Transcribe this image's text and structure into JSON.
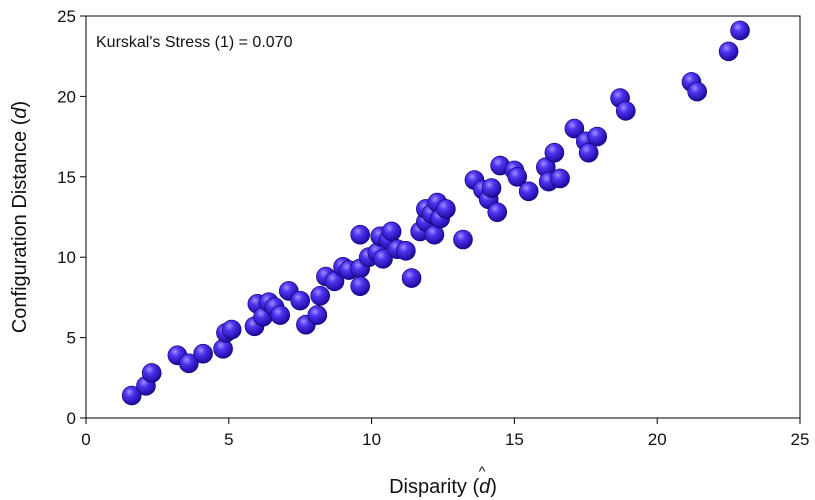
{
  "chart_data": {
    "type": "scatter",
    "annotation": "Kurskal's Stress (1) = 0.070",
    "xlabel_main": "Disparity (",
    "xlabel_symbol": "d",
    "xlabel_close": ")",
    "ylabel_main": "Configuration Distance (",
    "ylabel_symbol": "d",
    "ylabel_close": ")",
    "xlim": [
      0,
      25
    ],
    "ylim": [
      0,
      25
    ],
    "x_ticks": [
      "0",
      "5",
      "10",
      "15",
      "20",
      "25"
    ],
    "y_ticks": [
      "0",
      "5",
      "10",
      "15",
      "20",
      "25"
    ],
    "grid": false,
    "marker_color": "#3a1fd8",
    "points": [
      {
        "x": 1.6,
        "y": 1.4
      },
      {
        "x": 2.1,
        "y": 2.0
      },
      {
        "x": 2.3,
        "y": 2.8
      },
      {
        "x": 3.2,
        "y": 3.9
      },
      {
        "x": 3.6,
        "y": 3.4
      },
      {
        "x": 4.1,
        "y": 4.0
      },
      {
        "x": 4.8,
        "y": 4.3
      },
      {
        "x": 4.9,
        "y": 5.3
      },
      {
        "x": 5.1,
        "y": 5.5
      },
      {
        "x": 5.9,
        "y": 5.7
      },
      {
        "x": 6.0,
        "y": 7.1
      },
      {
        "x": 6.2,
        "y": 6.3
      },
      {
        "x": 6.4,
        "y": 7.2
      },
      {
        "x": 6.6,
        "y": 6.9
      },
      {
        "x": 6.8,
        "y": 6.4
      },
      {
        "x": 7.1,
        "y": 7.9
      },
      {
        "x": 7.5,
        "y": 7.3
      },
      {
        "x": 7.7,
        "y": 5.8
      },
      {
        "x": 8.1,
        "y": 6.4
      },
      {
        "x": 8.2,
        "y": 7.6
      },
      {
        "x": 8.4,
        "y": 8.8
      },
      {
        "x": 8.7,
        "y": 8.5
      },
      {
        "x": 9.0,
        "y": 9.4
      },
      {
        "x": 9.2,
        "y": 9.2
      },
      {
        "x": 9.6,
        "y": 9.3
      },
      {
        "x": 9.6,
        "y": 8.2
      },
      {
        "x": 9.6,
        "y": 11.4
      },
      {
        "x": 9.9,
        "y": 10.0
      },
      {
        "x": 10.2,
        "y": 10.3
      },
      {
        "x": 10.3,
        "y": 11.3
      },
      {
        "x": 10.4,
        "y": 9.9
      },
      {
        "x": 10.6,
        "y": 11.1
      },
      {
        "x": 10.7,
        "y": 11.6
      },
      {
        "x": 10.9,
        "y": 10.5
      },
      {
        "x": 11.2,
        "y": 10.4
      },
      {
        "x": 11.4,
        "y": 8.7
      },
      {
        "x": 11.7,
        "y": 11.6
      },
      {
        "x": 11.9,
        "y": 12.2
      },
      {
        "x": 11.9,
        "y": 13.0
      },
      {
        "x": 12.1,
        "y": 12.7
      },
      {
        "x": 12.2,
        "y": 11.4
      },
      {
        "x": 12.3,
        "y": 13.4
      },
      {
        "x": 12.4,
        "y": 12.4
      },
      {
        "x": 12.6,
        "y": 13.0
      },
      {
        "x": 13.2,
        "y": 11.1
      },
      {
        "x": 13.6,
        "y": 14.8
      },
      {
        "x": 13.9,
        "y": 14.2
      },
      {
        "x": 14.1,
        "y": 13.6
      },
      {
        "x": 14.2,
        "y": 14.3
      },
      {
        "x": 14.4,
        "y": 12.8
      },
      {
        "x": 14.5,
        "y": 15.7
      },
      {
        "x": 15.0,
        "y": 15.4
      },
      {
        "x": 15.1,
        "y": 15.0
      },
      {
        "x": 15.5,
        "y": 14.1
      },
      {
        "x": 16.1,
        "y": 15.6
      },
      {
        "x": 16.2,
        "y": 14.7
      },
      {
        "x": 16.4,
        "y": 16.5
      },
      {
        "x": 16.6,
        "y": 14.9
      },
      {
        "x": 17.1,
        "y": 18.0
      },
      {
        "x": 17.5,
        "y": 17.2
      },
      {
        "x": 17.6,
        "y": 16.5
      },
      {
        "x": 17.9,
        "y": 17.5
      },
      {
        "x": 18.7,
        "y": 19.9
      },
      {
        "x": 18.9,
        "y": 19.1
      },
      {
        "x": 21.2,
        "y": 20.9
      },
      {
        "x": 21.4,
        "y": 20.3
      },
      {
        "x": 22.5,
        "y": 22.8
      },
      {
        "x": 22.9,
        "y": 24.1
      }
    ]
  }
}
